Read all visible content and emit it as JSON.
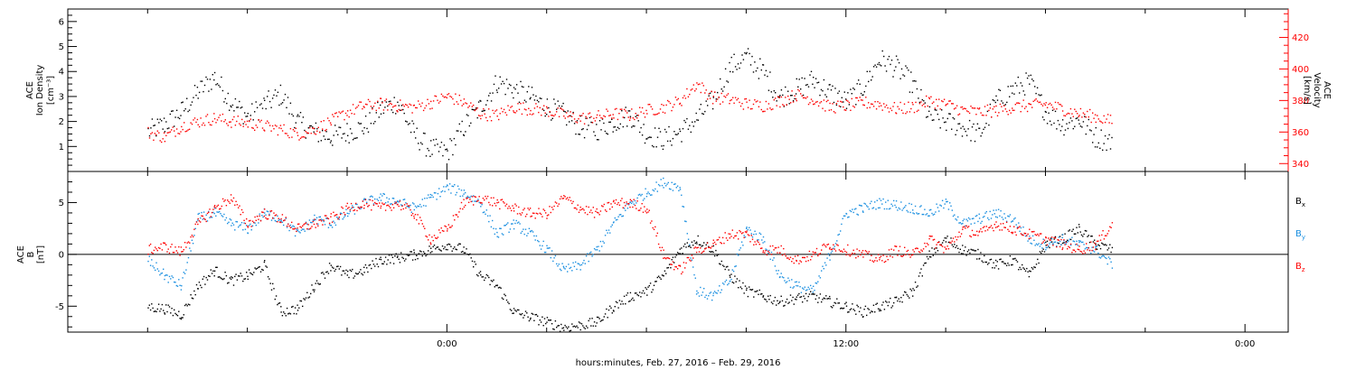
{
  "chart_data": [
    {
      "type": "scatter",
      "panel": "plasma",
      "ylabel_left_lines": [
        "ACE",
        "Ion Density",
        "[cm⁻³]"
      ],
      "ylabel_right_lines": [
        "ACE",
        "Velocity",
        "[km/s]"
      ],
      "ylim_left": [
        0,
        6.5
      ],
      "ylim_right": [
        335,
        438
      ],
      "yticks_left": [
        1,
        2,
        3,
        4,
        5,
        6
      ],
      "yticks_right": [
        340,
        360,
        380,
        400,
        420
      ],
      "colors": {
        "density": "#000000",
        "velocity": "#ff0000"
      },
      "series": [
        {
          "axis": "left",
          "color": "#000000",
          "x": [
            -9.0,
            -8.5,
            -8.0,
            -7.5,
            -7.0,
            -6.5,
            -6.0,
            -5.5,
            -5.0,
            -4.5,
            -4.0,
            -3.5,
            -3.0,
            -2.5,
            -2.0,
            -1.5,
            -1.0,
            -0.5,
            0.0,
            0.5,
            1.0,
            1.5,
            2.0,
            2.5,
            3.0,
            3.5,
            4.0,
            4.5,
            5.0,
            5.5,
            6.0,
            6.5,
            7.0,
            7.5,
            8.0,
            8.5,
            9.0,
            9.5,
            10.0,
            10.5,
            11.0,
            11.5,
            12.0,
            12.5,
            13.0,
            13.5,
            14.0,
            14.5,
            15.0,
            15.5,
            16.0,
            16.5,
            17.0,
            17.5,
            18.0,
            18.5,
            19.0,
            19.5,
            20.0
          ],
          "y": [
            1.6,
            1.9,
            2.4,
            3.2,
            3.8,
            2.8,
            2.2,
            2.7,
            3.1,
            2.0,
            1.6,
            1.4,
            1.6,
            1.8,
            2.5,
            2.8,
            1.5,
            0.9,
            0.8,
            1.8,
            2.6,
            3.6,
            3.3,
            3.0,
            2.6,
            2.3,
            1.8,
            1.7,
            2.0,
            2.3,
            1.5,
            1.3,
            1.6,
            2.1,
            2.9,
            4.2,
            4.6,
            4.0,
            3.0,
            3.3,
            3.7,
            3.2,
            2.8,
            3.4,
            4.5,
            4.2,
            3.5,
            2.2,
            2.0,
            1.8,
            1.5,
            2.8,
            3.3,
            3.6,
            2.4,
            1.9,
            2.1,
            1.4,
            1.2
          ]
        },
        {
          "axis": "right",
          "color": "#ff0000",
          "x": [
            -9.0,
            -8.5,
            -8.0,
            -7.5,
            -7.0,
            -6.5,
            -6.0,
            -5.5,
            -5.0,
            -4.5,
            -4.0,
            -3.5,
            -3.0,
            -2.5,
            -2.0,
            -1.5,
            -1.0,
            -0.5,
            0.0,
            0.5,
            1.0,
            1.5,
            2.0,
            2.5,
            3.0,
            3.5,
            4.0,
            4.5,
            5.0,
            5.5,
            6.0,
            6.5,
            7.0,
            7.5,
            8.0,
            8.5,
            9.0,
            9.5,
            10.0,
            10.5,
            11.0,
            11.5,
            12.0,
            12.5,
            13.0,
            13.5,
            14.0,
            14.5,
            15.0,
            15.5,
            16.0,
            16.5,
            17.0,
            17.5,
            18.0,
            18.5,
            19.0,
            19.5,
            20.0
          ],
          "y": [
            360,
            357,
            364,
            367,
            369,
            367,
            366,
            364,
            362,
            359,
            362,
            367,
            373,
            377,
            378,
            377,
            376,
            379,
            383,
            379,
            372,
            371,
            376,
            375,
            374,
            371,
            369,
            370,
            372,
            371,
            374,
            376,
            380,
            391,
            382,
            381,
            378,
            377,
            380,
            384,
            381,
            376,
            377,
            379,
            378,
            375,
            376,
            380,
            378,
            374,
            373,
            374,
            376,
            377,
            378,
            375,
            372,
            370,
            367
          ]
        }
      ]
    },
    {
      "type": "scatter",
      "panel": "magnetic",
      "ylabel_left_lines": [
        "ACE",
        "B",
        "[nT]"
      ],
      "ylim": [
        -7.5,
        8.0
      ],
      "yticks": [
        -5,
        0,
        5
      ],
      "zero_line": true,
      "legend": [
        {
          "label": "B",
          "subscript": "x",
          "color": "#000000"
        },
        {
          "label": "B",
          "subscript": "y",
          "color": "#1a8fe0"
        },
        {
          "label": "B",
          "subscript": "z",
          "color": "#ff0000"
        }
      ],
      "series": [
        {
          "name": "Bx",
          "color": "#000000",
          "x": [
            -9.0,
            -8.5,
            -8.0,
            -7.5,
            -7.0,
            -6.5,
            -6.0,
            -5.5,
            -5.0,
            -4.5,
            -4.0,
            -3.5,
            -3.0,
            -2.5,
            -2.0,
            -1.5,
            -1.0,
            -0.5,
            0.0,
            0.5,
            1.0,
            1.5,
            2.0,
            2.5,
            3.0,
            3.5,
            4.0,
            4.5,
            5.0,
            5.5,
            6.0,
            6.5,
            7.0,
            7.5,
            8.0,
            8.5,
            9.0,
            9.5,
            10.0,
            10.5,
            11.0,
            11.5,
            12.0,
            12.5,
            13.0,
            13.5,
            14.0,
            14.5,
            15.0,
            15.5,
            16.0,
            16.5,
            17.0,
            17.5,
            18.0,
            18.5,
            19.0,
            19.5,
            20.0
          ],
          "y": [
            -5.0,
            -5.2,
            -5.8,
            -3.0,
            -1.5,
            -2.5,
            -2.0,
            -1.0,
            -5.5,
            -5.2,
            -3.0,
            -1.0,
            -2.0,
            -1.5,
            -0.5,
            -0.3,
            0.0,
            0.5,
            1.0,
            0.5,
            -2.0,
            -3.0,
            -5.5,
            -6.0,
            -6.5,
            -7.0,
            -6.8,
            -6.5,
            -5.0,
            -4.0,
            -3.5,
            -2.0,
            0.5,
            1.5,
            0.5,
            -2.0,
            -3.5,
            -4.0,
            -4.5,
            -4.2,
            -4.0,
            -4.5,
            -5.0,
            -5.5,
            -5.0,
            -4.5,
            -3.5,
            0.0,
            1.5,
            0.5,
            0.0,
            -1.0,
            -0.5,
            -2.0,
            1.0,
            1.5,
            2.5,
            1.0,
            0.5
          ]
        },
        {
          "name": "By",
          "color": "#1a8fe0",
          "x": [
            -9.0,
            -8.5,
            -8.0,
            -7.5,
            -7.0,
            -6.5,
            -6.0,
            -5.5,
            -5.0,
            -4.5,
            -4.0,
            -3.5,
            -3.0,
            -2.5,
            -2.0,
            -1.5,
            -1.0,
            -0.5,
            0.0,
            0.5,
            1.0,
            1.5,
            2.0,
            2.5,
            3.0,
            3.5,
            4.0,
            4.5,
            5.0,
            5.5,
            6.0,
            6.5,
            7.0,
            7.5,
            8.0,
            8.5,
            9.0,
            9.5,
            10.0,
            10.5,
            11.0,
            11.5,
            12.0,
            12.5,
            13.0,
            13.5,
            14.0,
            14.5,
            15.0,
            15.5,
            16.0,
            16.5,
            17.0,
            17.5,
            18.0,
            18.5,
            19.0,
            19.5,
            20.0
          ],
          "y": [
            -0.5,
            -2.0,
            -3.0,
            3.5,
            4.0,
            3.0,
            2.5,
            4.0,
            3.5,
            2.0,
            3.5,
            3.0,
            4.0,
            5.0,
            5.5,
            5.2,
            4.5,
            5.5,
            6.5,
            6.0,
            5.0,
            2.0,
            3.0,
            2.0,
            0.5,
            -1.5,
            -1.0,
            0.5,
            3.0,
            5.0,
            6.0,
            7.0,
            6.5,
            -3.5,
            -4.0,
            -2.5,
            2.5,
            1.5,
            -2.0,
            -3.0,
            -3.5,
            0.0,
            4.0,
            4.5,
            5.0,
            4.8,
            4.5,
            4.0,
            5.0,
            3.0,
            3.5,
            4.0,
            3.5,
            1.5,
            1.0,
            1.5,
            1.0,
            0.5,
            -1.0
          ]
        },
        {
          "name": "Bz",
          "color": "#ff0000",
          "x": [
            -9.0,
            -8.5,
            -8.0,
            -7.5,
            -7.0,
            -6.5,
            -6.0,
            -5.5,
            -5.0,
            -4.5,
            -4.0,
            -3.5,
            -3.0,
            -2.5,
            -2.0,
            -1.5,
            -1.0,
            -0.5,
            0.0,
            0.5,
            1.0,
            1.5,
            2.0,
            2.5,
            3.0,
            3.5,
            4.0,
            4.5,
            5.0,
            5.5,
            6.0,
            6.5,
            7.0,
            7.5,
            8.0,
            8.5,
            9.0,
            9.5,
            10.0,
            10.5,
            11.0,
            11.5,
            12.0,
            12.5,
            13.0,
            13.5,
            14.0,
            14.5,
            15.0,
            15.5,
            16.0,
            16.5,
            17.0,
            17.5,
            18.0,
            18.5,
            19.0,
            19.5,
            20.0
          ],
          "y": [
            0.5,
            0.8,
            0.3,
            3.0,
            4.5,
            5.5,
            3.0,
            4.0,
            3.5,
            2.5,
            3.0,
            3.5,
            4.5,
            5.0,
            4.5,
            5.0,
            4.0,
            1.5,
            2.5,
            5.0,
            5.5,
            5.0,
            4.5,
            4.0,
            4.0,
            5.5,
            4.5,
            4.0,
            5.0,
            5.0,
            4.5,
            0.0,
            -1.5,
            0.5,
            1.0,
            2.0,
            2.0,
            0.5,
            0.5,
            -0.5,
            0.0,
            1.0,
            0.5,
            0.0,
            -0.5,
            0.5,
            0.0,
            1.5,
            0.5,
            2.5,
            2.0,
            3.0,
            2.5,
            2.0,
            1.5,
            1.0,
            0.5,
            1.0,
            3.0
          ]
        }
      ]
    }
  ],
  "x_axis": {
    "title": "hours:minutes, Feb. 27, 2016 – Feb. 29, 2016",
    "tick_hours": [
      0,
      12,
      24
    ],
    "tick_labels": [
      "0:00",
      "12:00",
      "0:00"
    ],
    "xlim": [
      -11.4,
      25.3
    ],
    "data_end": 20.0
  }
}
